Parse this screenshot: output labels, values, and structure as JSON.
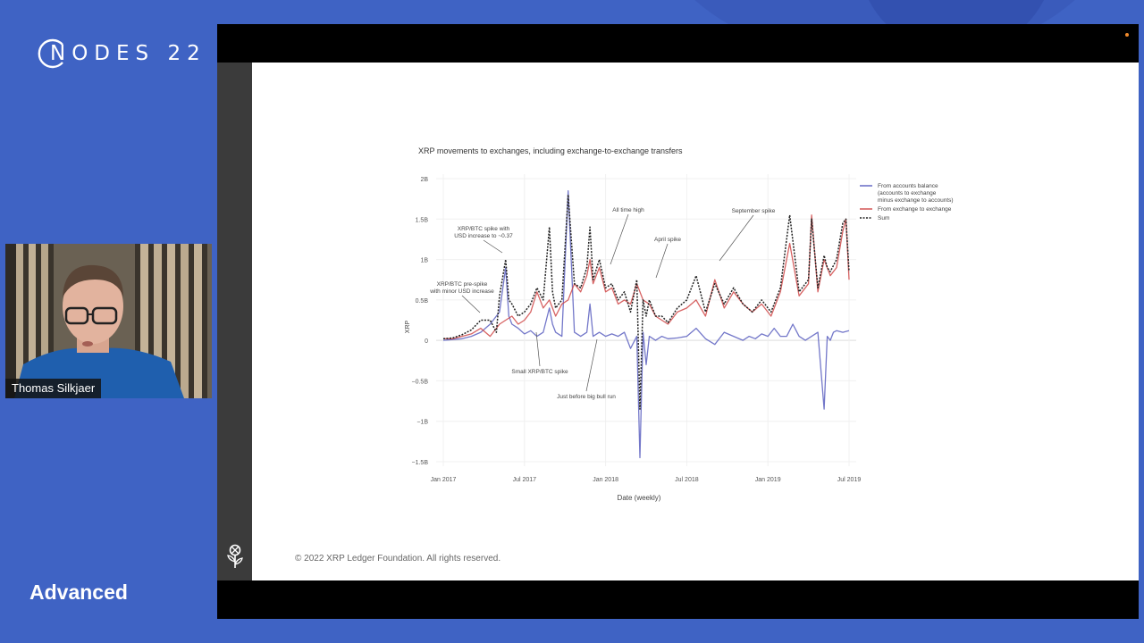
{
  "brand": {
    "logo_text": "nodes 22"
  },
  "presenter": {
    "name": "Thomas Silkjaer"
  },
  "session_level": "Advanced",
  "slide": {
    "copyright": "© 2022 XRP Ledger Foundation. All rights reserved."
  },
  "chart_data": {
    "type": "line",
    "title": "XRP movements to exchanges, including exchange-to-exchange transfers",
    "xlabel": "Date (weekly)",
    "ylabel": "XRP",
    "x_ticks": [
      "Jan 2017",
      "Jul 2017",
      "Jan 2018",
      "Jul 2018",
      "Jan 2019",
      "Jul 2019"
    ],
    "y_ticks": [
      "2B",
      "1.5B",
      "1B",
      "0.5B",
      "0",
      "−0.5B",
      "−1B",
      "−1.5B"
    ],
    "ylim": [
      -1.5,
      2.0
    ],
    "x_unit": "weeks since Jan 2017",
    "xlim": [
      0,
      130
    ],
    "legend": [
      {
        "name": "From accounts balance (accounts to exchange minus exchange to accounts)",
        "lines": [
          "From accounts balance",
          "(accounts to exchange",
          "minus exchange to accounts)"
        ],
        "color": "#5b5fc0",
        "dash": "solid"
      },
      {
        "name": "From exchange to exchange",
        "lines": [
          "From exchange to exchange"
        ],
        "color": "#d04848",
        "dash": "solid"
      },
      {
        "name": "Sum",
        "lines": [
          "Sum"
        ],
        "color": "#222222",
        "dash": "dot"
      }
    ],
    "series": [
      {
        "name": "From accounts balance",
        "color": "#5b5fc0",
        "x": [
          0,
          3,
          6,
          9,
          12,
          15,
          18,
          20,
          21,
          22,
          24,
          26,
          28,
          30,
          32,
          34,
          35,
          36,
          38,
          40,
          42,
          44,
          46,
          47,
          48,
          50,
          52,
          54,
          56,
          58,
          60,
          62,
          63,
          64,
          65,
          66,
          68,
          70,
          72,
          75,
          78,
          81,
          84,
          87,
          90,
          93,
          96,
          98,
          100,
          102,
          104,
          106,
          108,
          110,
          112,
          114,
          116,
          118,
          120,
          122,
          123,
          124,
          125,
          126,
          128,
          130
        ],
        "values": [
          0.0,
          0.01,
          0.02,
          0.05,
          0.1,
          0.2,
          0.35,
          0.9,
          0.3,
          0.2,
          0.15,
          0.08,
          0.12,
          0.05,
          0.1,
          0.4,
          0.2,
          0.1,
          0.05,
          1.85,
          0.1,
          0.05,
          0.1,
          0.45,
          0.05,
          0.1,
          0.05,
          0.08,
          0.05,
          0.1,
          -0.1,
          0.05,
          -1.45,
          0.1,
          -0.3,
          0.05,
          0.0,
          0.05,
          0.02,
          0.03,
          0.05,
          0.15,
          0.02,
          -0.05,
          0.1,
          0.05,
          0.0,
          0.05,
          0.02,
          0.08,
          0.05,
          0.15,
          0.05,
          0.05,
          0.2,
          0.05,
          0.0,
          0.05,
          0.1,
          -0.85,
          0.05,
          0.0,
          0.1,
          0.12,
          0.1,
          0.12
        ]
      },
      {
        "name": "From exchange to exchange",
        "color": "#d04848",
        "x": [
          0,
          3,
          6,
          9,
          12,
          15,
          18,
          20,
          22,
          24,
          26,
          28,
          30,
          32,
          34,
          36,
          38,
          40,
          42,
          44,
          46,
          47,
          48,
          50,
          52,
          54,
          56,
          58,
          60,
          62,
          64,
          66,
          68,
          70,
          72,
          75,
          78,
          81,
          84,
          87,
          90,
          93,
          96,
          99,
          102,
          105,
          108,
          111,
          114,
          117,
          118,
          120,
          122,
          124,
          126,
          128,
          129,
          130
        ],
        "values": [
          0.02,
          0.02,
          0.05,
          0.08,
          0.15,
          0.05,
          0.2,
          0.25,
          0.3,
          0.2,
          0.25,
          0.35,
          0.6,
          0.4,
          0.5,
          0.3,
          0.45,
          0.5,
          0.7,
          0.6,
          0.8,
          1.0,
          0.7,
          0.9,
          0.6,
          0.65,
          0.45,
          0.5,
          0.45,
          0.7,
          0.5,
          0.45,
          0.3,
          0.25,
          0.2,
          0.35,
          0.4,
          0.5,
          0.3,
          0.75,
          0.4,
          0.6,
          0.45,
          0.35,
          0.45,
          0.3,
          0.6,
          1.2,
          0.55,
          0.7,
          1.55,
          0.6,
          1.0,
          0.8,
          0.9,
          1.35,
          1.5,
          0.75
        ]
      },
      {
        "name": "Sum",
        "color": "#222222",
        "x": [
          0,
          3,
          6,
          9,
          12,
          15,
          17,
          18,
          20,
          21,
          22,
          24,
          26,
          28,
          30,
          32,
          34,
          35,
          36,
          38,
          40,
          42,
          44,
          46,
          47,
          48,
          50,
          52,
          54,
          56,
          58,
          60,
          62,
          63,
          64,
          65,
          66,
          68,
          70,
          72,
          75,
          78,
          81,
          84,
          87,
          90,
          93,
          96,
          99,
          102,
          105,
          108,
          111,
          114,
          117,
          118,
          120,
          122,
          123,
          124,
          126,
          128,
          129,
          130
        ],
        "values": [
          0.02,
          0.03,
          0.07,
          0.13,
          0.25,
          0.25,
          0.1,
          0.55,
          1.0,
          0.5,
          0.45,
          0.3,
          0.35,
          0.45,
          0.65,
          0.5,
          1.4,
          0.6,
          0.4,
          0.5,
          1.8,
          0.7,
          0.65,
          0.9,
          1.4,
          0.75,
          1.0,
          0.65,
          0.7,
          0.5,
          0.6,
          0.35,
          0.75,
          -0.85,
          0.5,
          0.3,
          0.5,
          0.3,
          0.3,
          0.22,
          0.4,
          0.5,
          0.8,
          0.35,
          0.7,
          0.45,
          0.65,
          0.45,
          0.35,
          0.5,
          0.35,
          0.65,
          1.55,
          0.6,
          0.75,
          1.5,
          0.65,
          1.05,
          0.9,
          0.85,
          1.0,
          1.45,
          1.5,
          0.85
        ]
      }
    ],
    "annotations": [
      {
        "label": "XRP/BTC pre-spike with minor USD increase",
        "lines": [
          "XRP/BTC pre-spike",
          "with minor USD increase"
        ],
        "x": 15,
        "y": 0.25
      },
      {
        "label": "XRP/BTC spike with USD increase to ~0.37",
        "lines": [
          "XRP/BTC spike with",
          "USD increase to ~0.37"
        ],
        "x": 20,
        "y": 1.0
      },
      {
        "label": "All time high",
        "lines": [
          "All time high"
        ],
        "x": 52,
        "y": 0.9
      },
      {
        "label": "April spike",
        "lines": [
          "April spike"
        ],
        "x": 66,
        "y": 0.75
      },
      {
        "label": "September spike",
        "lines": [
          "September spike"
        ],
        "x": 87,
        "y": 0.95
      },
      {
        "label": "Small XRP/BTC spike",
        "lines": [
          "Small XRP/BTC spike"
        ],
        "x": 28,
        "y": 0.15
      },
      {
        "label": "Just before big bull run",
        "lines": [
          "Just before big bull run"
        ],
        "x": 50,
        "y": 0.0
      }
    ]
  }
}
